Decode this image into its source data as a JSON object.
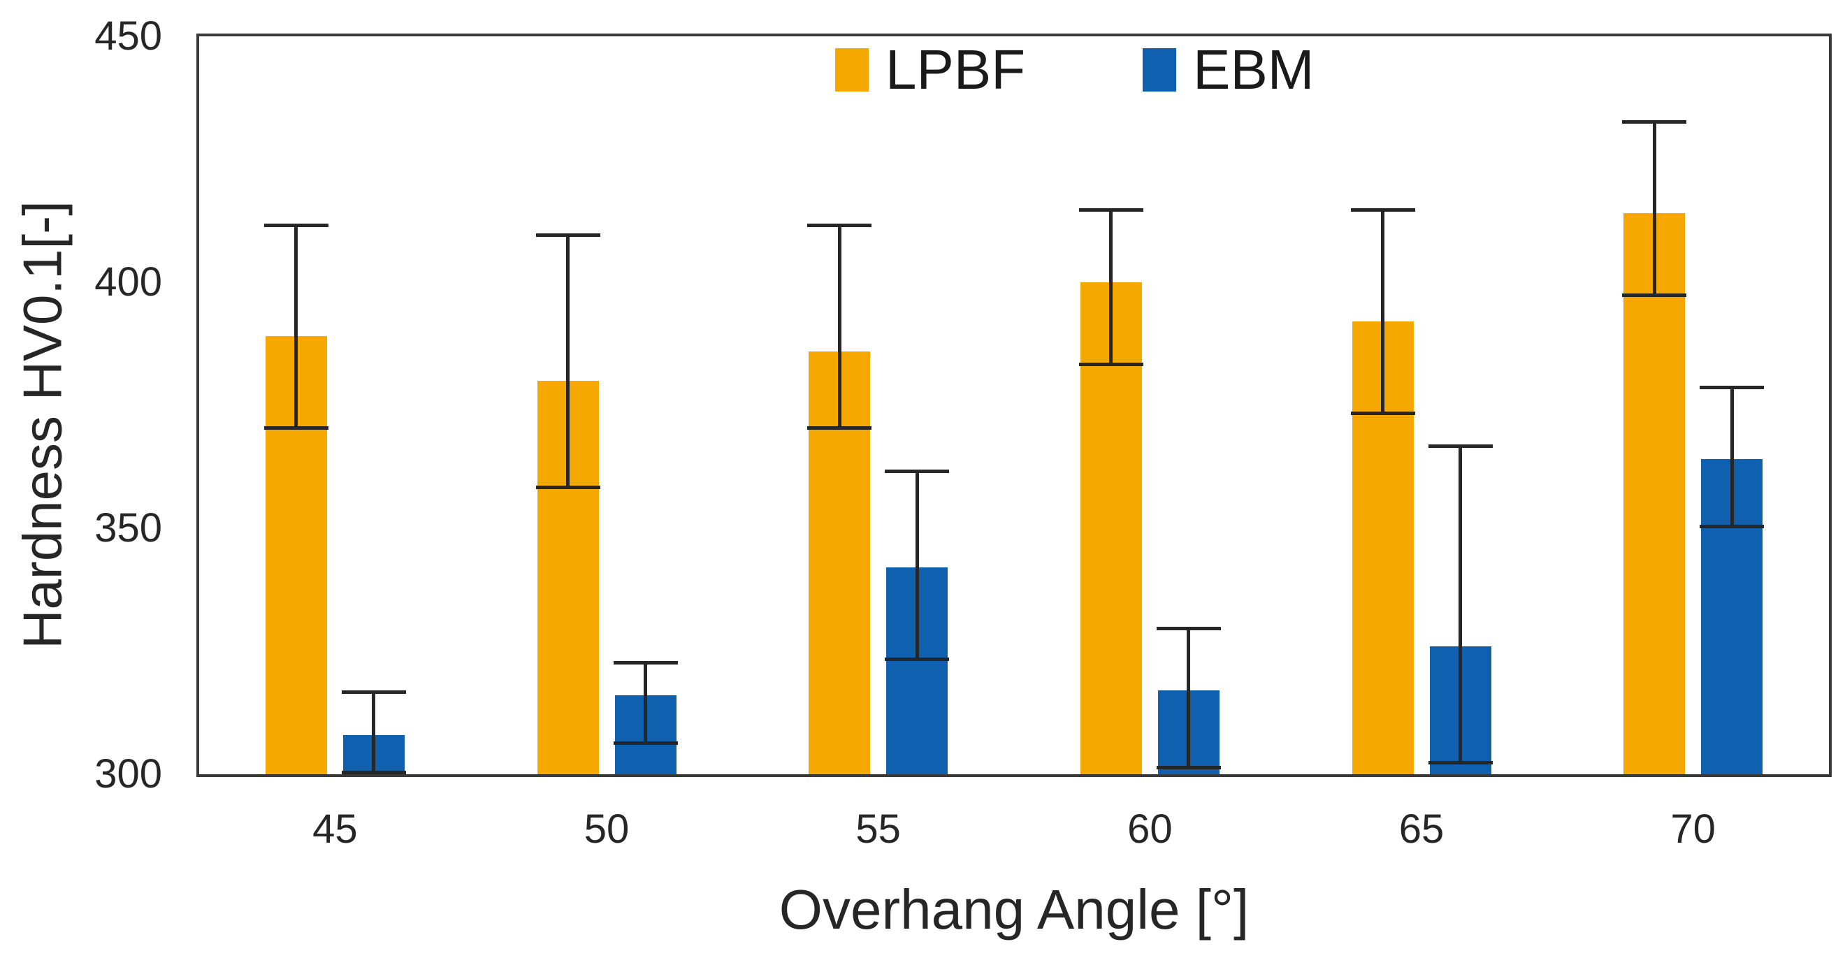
{
  "figure": {
    "background": "#ffffff",
    "axis_color": "#3a3a3a",
    "text_color": "#262626",
    "error_bar_color": "#262626"
  },
  "chart_data": {
    "type": "bar",
    "title": "",
    "xlabel": "Overhang Angle [°]",
    "ylabel": "Hardness HV0.1[-]",
    "ylim": [
      300,
      450
    ],
    "yticks": [
      300,
      350,
      400,
      450
    ],
    "categories": [
      "45",
      "50",
      "55",
      "60",
      "65",
      "70"
    ],
    "grid": false,
    "legend_position": "top-center-inside",
    "series": [
      {
        "name": "LPBF",
        "color": "#F5A800",
        "values": [
          389,
          380,
          386,
          400,
          392,
          414
        ],
        "error_upper": [
          412,
          410,
          412,
          415,
          415,
          433
        ],
        "error_lower": [
          370,
          358,
          370,
          383,
          373,
          397
        ]
      },
      {
        "name": "EBM",
        "color": "#1060B0",
        "values": [
          308,
          316,
          342,
          317,
          326,
          364
        ],
        "error_upper": [
          317,
          323,
          362,
          330,
          367,
          379
        ],
        "error_lower": [
          300,
          306,
          323,
          301,
          302,
          350
        ]
      }
    ]
  }
}
